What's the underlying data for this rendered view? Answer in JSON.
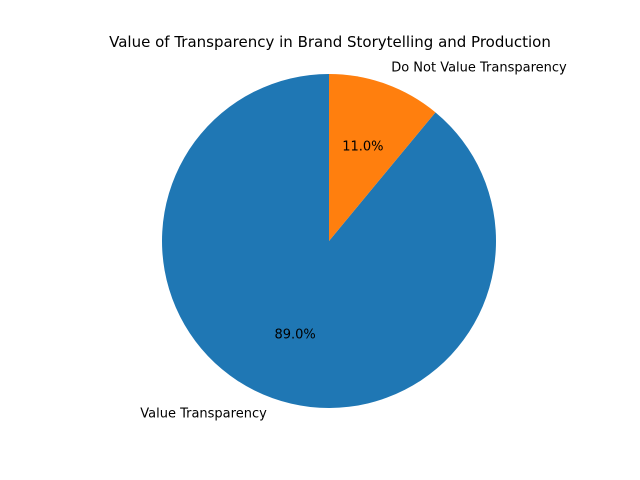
{
  "chart_data": {
    "type": "pie",
    "title": "Value of Transparency in Brand Storytelling and Production",
    "categories": [
      "Value Transparency",
      "Do Not Value Transparency"
    ],
    "values": [
      89.0,
      11.0
    ],
    "slices": [
      {
        "label": "Value Transparency",
        "value": 89.0,
        "pct_label": "89.0%",
        "color": "#1f77b4"
      },
      {
        "label": "Do Not Value Transparency",
        "value": 11.0,
        "pct_label": "11.0%",
        "color": "#ff7f0e"
      }
    ],
    "start_angle_deg": 90,
    "direction": "counterclockwise",
    "pct_distance": 0.6,
    "label_distance": 1.1,
    "legend": "none",
    "background_color": "#ffffff",
    "text_color": "#000000"
  }
}
